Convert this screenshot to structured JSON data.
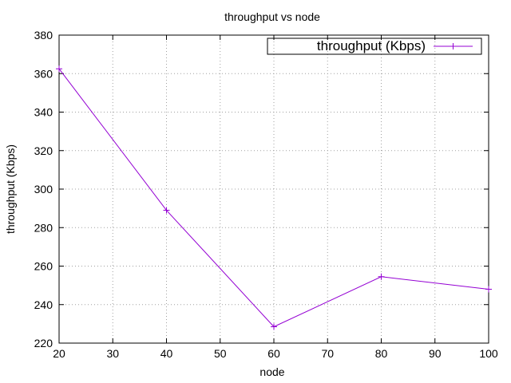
{
  "chart_data": {
    "type": "line",
    "title": "throughput vs node",
    "xlabel": "node",
    "ylabel": "throughput (Kbps)",
    "xlim": [
      20,
      100
    ],
    "ylim": [
      220,
      380
    ],
    "xticks": [
      20,
      30,
      40,
      50,
      60,
      70,
      80,
      90,
      100
    ],
    "yticks": [
      220,
      240,
      260,
      280,
      300,
      320,
      340,
      360,
      380
    ],
    "grid": true,
    "legend_position": "top-right",
    "series": [
      {
        "name": "throughput (Kbps)",
        "color": "#9400d3",
        "marker": "plus",
        "x": [
          20,
          40,
          60,
          80,
          100
        ],
        "y": [
          362.5,
          289,
          228.5,
          254.5,
          248
        ]
      }
    ]
  }
}
